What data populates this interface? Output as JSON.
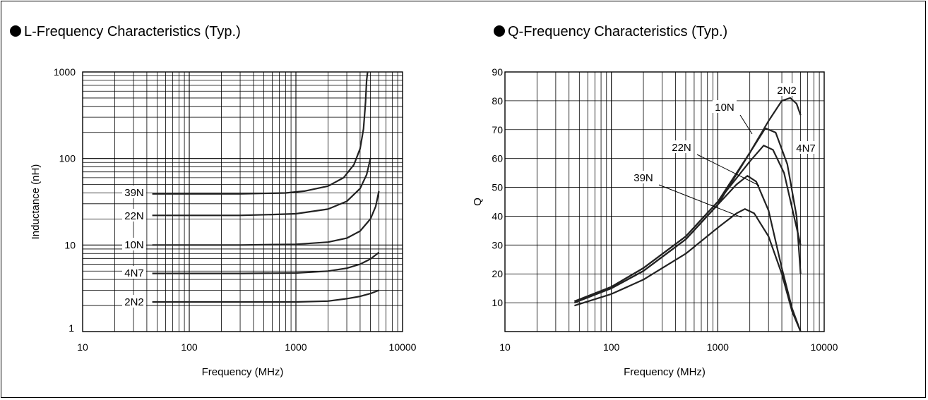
{
  "chart_data": [
    {
      "type": "line",
      "title": "L-Frequency Characteristics (Typ.)",
      "xlabel": "Frequency (MHz)",
      "ylabel": "Inductance (nH)",
      "x_scale": "log",
      "y_scale": "log",
      "xlim": [
        10,
        10000
      ],
      "ylim": [
        1,
        1000
      ],
      "x_ticks": [
        "10",
        "100",
        "1000",
        "10000"
      ],
      "y_ticks": [
        "1",
        "10",
        "100",
        "1000"
      ],
      "grid": true,
      "series": [
        {
          "name": "39N",
          "x": [
            45,
            100,
            300,
            800,
            1200,
            2000,
            2800,
            3500,
            4000,
            4300,
            4500,
            4600,
            4700
          ],
          "y": [
            39,
            39,
            39,
            40,
            42,
            48,
            60,
            85,
            130,
            220,
            450,
            800,
            1000
          ]
        },
        {
          "name": "22N",
          "x": [
            45,
            100,
            300,
            600,
            1000,
            2000,
            3000,
            4000,
            4600,
            5000
          ],
          "y": [
            22,
            22,
            22,
            22.5,
            23,
            26,
            32,
            45,
            65,
            100
          ]
        },
        {
          "name": "10N",
          "x": [
            45,
            100,
            300,
            1000,
            2000,
            3000,
            4000,
            5000,
            5600,
            6000
          ],
          "y": [
            10,
            10,
            10,
            10.2,
            10.8,
            12,
            14.5,
            20,
            28,
            42
          ]
        },
        {
          "name": "4N7",
          "x": [
            45,
            100,
            300,
            1000,
            2000,
            3000,
            4000,
            5000,
            6000
          ],
          "y": [
            4.7,
            4.7,
            4.7,
            4.75,
            5.0,
            5.4,
            6.0,
            6.9,
            8.2
          ]
        },
        {
          "name": "2N2",
          "x": [
            45,
            100,
            300,
            1000,
            2000,
            3000,
            4000,
            5000,
            6000
          ],
          "y": [
            2.2,
            2.2,
            2.2,
            2.2,
            2.25,
            2.4,
            2.55,
            2.75,
            3.0
          ]
        }
      ]
    },
    {
      "type": "line",
      "title": "Q-Frequency Characteristics (Typ.)",
      "xlabel": "Frequency (MHz)",
      "ylabel": "Q",
      "x_scale": "log",
      "y_scale": "linear",
      "xlim": [
        10,
        10000
      ],
      "ylim": [
        0,
        90
      ],
      "x_ticks": [
        "10",
        "100",
        "1000",
        "10000"
      ],
      "y_ticks": [
        "10",
        "20",
        "30",
        "40",
        "50",
        "60",
        "70",
        "80",
        "90"
      ],
      "grid": true,
      "series": [
        {
          "name": "2N2",
          "x": [
            45,
            100,
            200,
            500,
            1000,
            2000,
            3000,
            4000,
            4800,
            5500,
            6000
          ],
          "y": [
            10.5,
            15,
            21,
            32,
            44,
            62,
            73,
            80,
            81,
            79,
            75
          ]
        },
        {
          "name": "4N7",
          "x": [
            45,
            100,
            200,
            500,
            1000,
            2000,
            2800,
            3500,
            4500,
            5500,
            6000
          ],
          "y": [
            10.5,
            15.5,
            22,
            33,
            45,
            62,
            70.5,
            69,
            58,
            40,
            20
          ]
        },
        {
          "name": "10N",
          "x": [
            45,
            100,
            200,
            500,
            1000,
            2000,
            2700,
            3300,
            4200,
            5200,
            6000
          ],
          "y": [
            10.5,
            15.5,
            22,
            33,
            45,
            59,
            64.5,
            63,
            55,
            40,
            30
          ]
        },
        {
          "name": "22N",
          "x": [
            45,
            100,
            200,
            500,
            1000,
            1500,
            1900,
            2300,
            3000,
            4000,
            5000,
            6000
          ],
          "y": [
            10,
            15,
            21,
            32,
            44,
            51,
            54,
            52,
            42,
            22,
            8,
            0
          ]
        },
        {
          "name": "39N",
          "x": [
            45,
            100,
            200,
            500,
            1000,
            1500,
            1800,
            2200,
            3000,
            4000,
            5000,
            6000
          ],
          "y": [
            9,
            13,
            18,
            27,
            36,
            41,
            42.5,
            41,
            33,
            20,
            7,
            0
          ]
        }
      ]
    }
  ]
}
